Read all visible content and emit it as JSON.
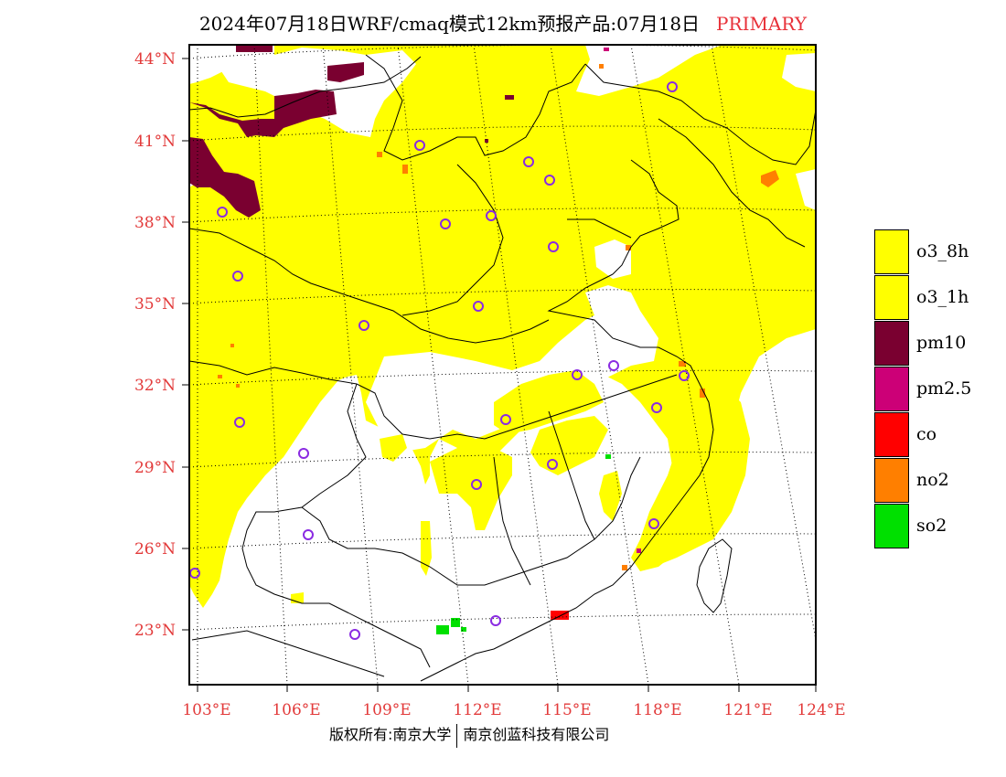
{
  "title": {
    "main": "2024年07月18日WRF/cmaq模式12km预报产品:07月18日",
    "tag": "PRIMARY"
  },
  "map": {
    "lat_labels": [
      "44°N",
      "41°N",
      "38°N",
      "35°N",
      "32°N",
      "29°N",
      "26°N",
      "23°N"
    ],
    "lon_labels": [
      "103°E",
      "106°E",
      "109°E",
      "112°E",
      "115°E",
      "118°E",
      "121°E",
      "124°E"
    ],
    "colors": {
      "o3_8h": "#ffff00",
      "o3_1h": "#ffff00",
      "pm10": "#7a0030",
      "pm2_5": "#cc0077",
      "co": "#ff0000",
      "no2": "#ff7f00",
      "so2": "#00e000",
      "city_marker": "#8a2be2",
      "tick_text": "#e23a3a"
    }
  },
  "legend": {
    "items": [
      {
        "label": "o3_8h",
        "color": "#ffff00"
      },
      {
        "label": "o3_1h",
        "color": "#ffff00"
      },
      {
        "label": "pm10",
        "color": "#7a0030"
      },
      {
        "label": "pm2.5",
        "color": "#cc0077"
      },
      {
        "label": "co",
        "color": "#ff0000"
      },
      {
        "label": "no2",
        "color": "#ff7f00"
      },
      {
        "label": "so2",
        "color": "#00e000"
      }
    ]
  },
  "footer": {
    "left": "版权所有:南京大学",
    "right": "南京创蓝科技有限公司"
  }
}
